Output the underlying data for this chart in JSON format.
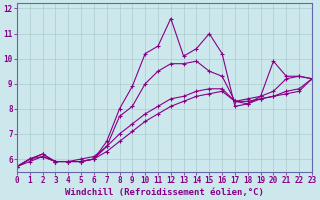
{
  "background_color": "#cce8ec",
  "line_color": "#880088",
  "grid_color": "#aacccc",
  "spine_color": "#6666aa",
  "font_color": "#880088",
  "xlabel": "Windchill (Refroidissement éolien,°C)",
  "xlim": [
    0,
    23
  ],
  "ylim": [
    5.5,
    12.2
  ],
  "xticks": [
    0,
    1,
    2,
    3,
    4,
    5,
    6,
    7,
    8,
    9,
    10,
    11,
    12,
    13,
    14,
    15,
    16,
    17,
    18,
    19,
    20,
    21,
    22,
    23
  ],
  "yticks": [
    6,
    7,
    8,
    9,
    10,
    11,
    12
  ],
  "tick_fontsize": 5.5,
  "label_fontsize": 6.5,
  "linewidth": 0.8,
  "markersize": 3.0,
  "series1": [
    5.7,
    6.0,
    6.2,
    5.9,
    5.9,
    5.9,
    6.0,
    6.7,
    8.0,
    8.9,
    10.2,
    10.5,
    11.6,
    10.1,
    10.4,
    11.0,
    10.2,
    8.1,
    8.2,
    8.5,
    9.9,
    9.3,
    9.3,
    9.2
  ],
  "series2": [
    5.7,
    6.0,
    6.2,
    5.9,
    5.9,
    5.9,
    6.0,
    6.5,
    7.7,
    8.1,
    9.0,
    9.5,
    9.8,
    9.8,
    9.9,
    9.5,
    9.3,
    8.3,
    8.4,
    8.5,
    8.7,
    9.2,
    9.3,
    9.2
  ],
  "series3": [
    5.7,
    6.0,
    6.1,
    5.9,
    5.9,
    6.0,
    6.1,
    6.5,
    7.0,
    7.4,
    7.8,
    8.1,
    8.4,
    8.5,
    8.7,
    8.8,
    8.8,
    8.3,
    8.3,
    8.4,
    8.5,
    8.7,
    8.8,
    9.2
  ],
  "series4": [
    5.7,
    5.9,
    6.1,
    5.9,
    5.9,
    5.9,
    6.0,
    6.3,
    6.7,
    7.1,
    7.5,
    7.8,
    8.1,
    8.3,
    8.5,
    8.6,
    8.7,
    8.3,
    8.2,
    8.4,
    8.5,
    8.6,
    8.7,
    9.2
  ]
}
